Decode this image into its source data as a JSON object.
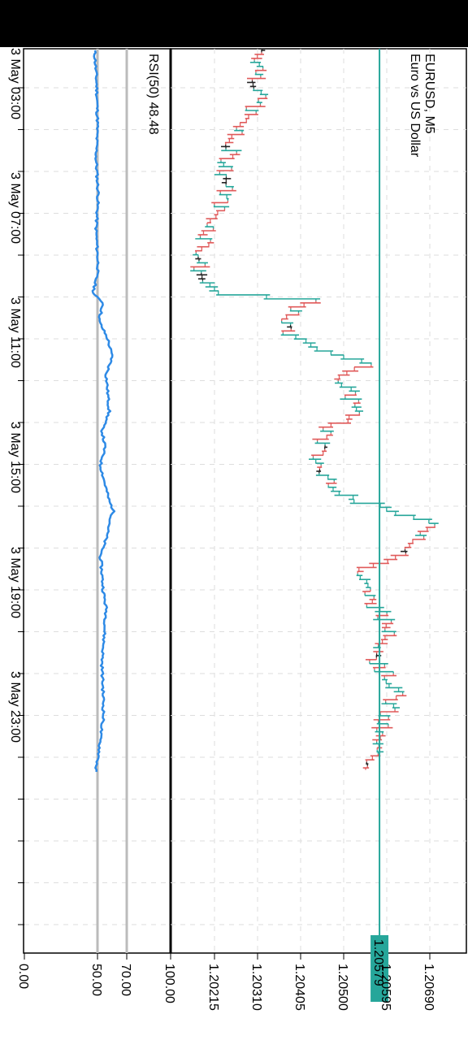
{
  "app": {
    "symbol_title": "EURUSD, M5",
    "symbol_desc": "Euro vs US Dollar",
    "indicator_label": "RSI(50) 48.48",
    "current_price": "1.20579"
  },
  "chart_data": [
    {
      "type": "ohlc",
      "title": "EURUSD, M5",
      "subtitle": "Euro vs US Dollar",
      "ylim": [
        1.2015,
        1.2075
      ],
      "price_ticks": [
        "1.20215",
        "1.20310",
        "1.20405",
        "1.20500",
        "1.20595",
        "1.20690"
      ],
      "time_labels": [
        "3 May 03:00",
        "3 May 07:00",
        "3 May 11:00",
        "3 May 15:00",
        "3 May 19:00",
        "3 May 23:00"
      ],
      "current_price": 1.20579,
      "path": [
        [
          0,
          1.2032
        ],
        [
          6,
          1.2031
        ],
        [
          10,
          1.2025
        ],
        [
          16,
          1.2024
        ],
        [
          21,
          1.202
        ],
        [
          24,
          1.2018
        ],
        [
          27,
          1.202
        ],
        [
          28,
          1.2043
        ],
        [
          30,
          1.2036
        ],
        [
          32,
          1.2038
        ],
        [
          35,
          1.2055
        ],
        [
          37,
          1.2049
        ],
        [
          40,
          1.2054
        ],
        [
          42,
          1.2047
        ],
        [
          45,
          1.2044
        ],
        [
          47,
          1.2045
        ],
        [
          50,
          1.2052
        ],
        [
          52,
          1.2065
        ],
        [
          53,
          1.207
        ],
        [
          56,
          1.2064
        ],
        [
          58,
          1.2053
        ],
        [
          62,
          1.2057
        ],
        [
          65,
          1.2061
        ],
        [
          68,
          1.2057
        ],
        [
          71,
          1.2062
        ],
        [
          74,
          1.2059
        ],
        [
          77,
          1.2057
        ],
        [
          80,
          1.2056
        ]
      ]
    },
    {
      "type": "line",
      "title": "RSI(50) 48.48",
      "ylim": [
        0,
        100
      ],
      "y_ticks": [
        "100.00",
        "70.00",
        "50.00",
        "0.00"
      ],
      "levels": [
        50,
        70
      ],
      "value_last": 48.48,
      "path": [
        [
          0,
          48
        ],
        [
          4,
          49.5
        ],
        [
          8,
          50
        ],
        [
          12,
          49
        ],
        [
          16,
          50.5
        ],
        [
          20,
          49
        ],
        [
          24,
          50.5
        ],
        [
          27,
          47
        ],
        [
          28,
          54
        ],
        [
          30,
          51
        ],
        [
          32,
          57
        ],
        [
          34,
          60
        ],
        [
          36,
          56
        ],
        [
          38,
          57
        ],
        [
          40,
          58
        ],
        [
          41,
          56
        ],
        [
          42,
          53
        ],
        [
          44,
          55
        ],
        [
          46,
          52
        ],
        [
          48,
          55
        ],
        [
          50,
          58
        ],
        [
          51,
          61
        ],
        [
          52,
          59
        ],
        [
          54,
          56
        ],
        [
          56,
          52
        ],
        [
          58,
          53
        ],
        [
          60,
          54
        ],
        [
          62,
          56
        ],
        [
          64,
          55
        ],
        [
          66,
          54
        ],
        [
          68,
          53
        ],
        [
          70,
          53.5
        ],
        [
          72,
          54
        ],
        [
          74,
          54
        ],
        [
          76,
          52
        ],
        [
          78,
          51
        ],
        [
          80,
          48.48
        ]
      ]
    }
  ],
  "colors": {
    "bull": "#26a69a",
    "bear": "#e05a5a",
    "doji": "#222222",
    "rsi_line": "#2e8ae6",
    "level_line": "#bbbbbb",
    "grid": "#dddddd",
    "price_line": "#26a69a"
  }
}
